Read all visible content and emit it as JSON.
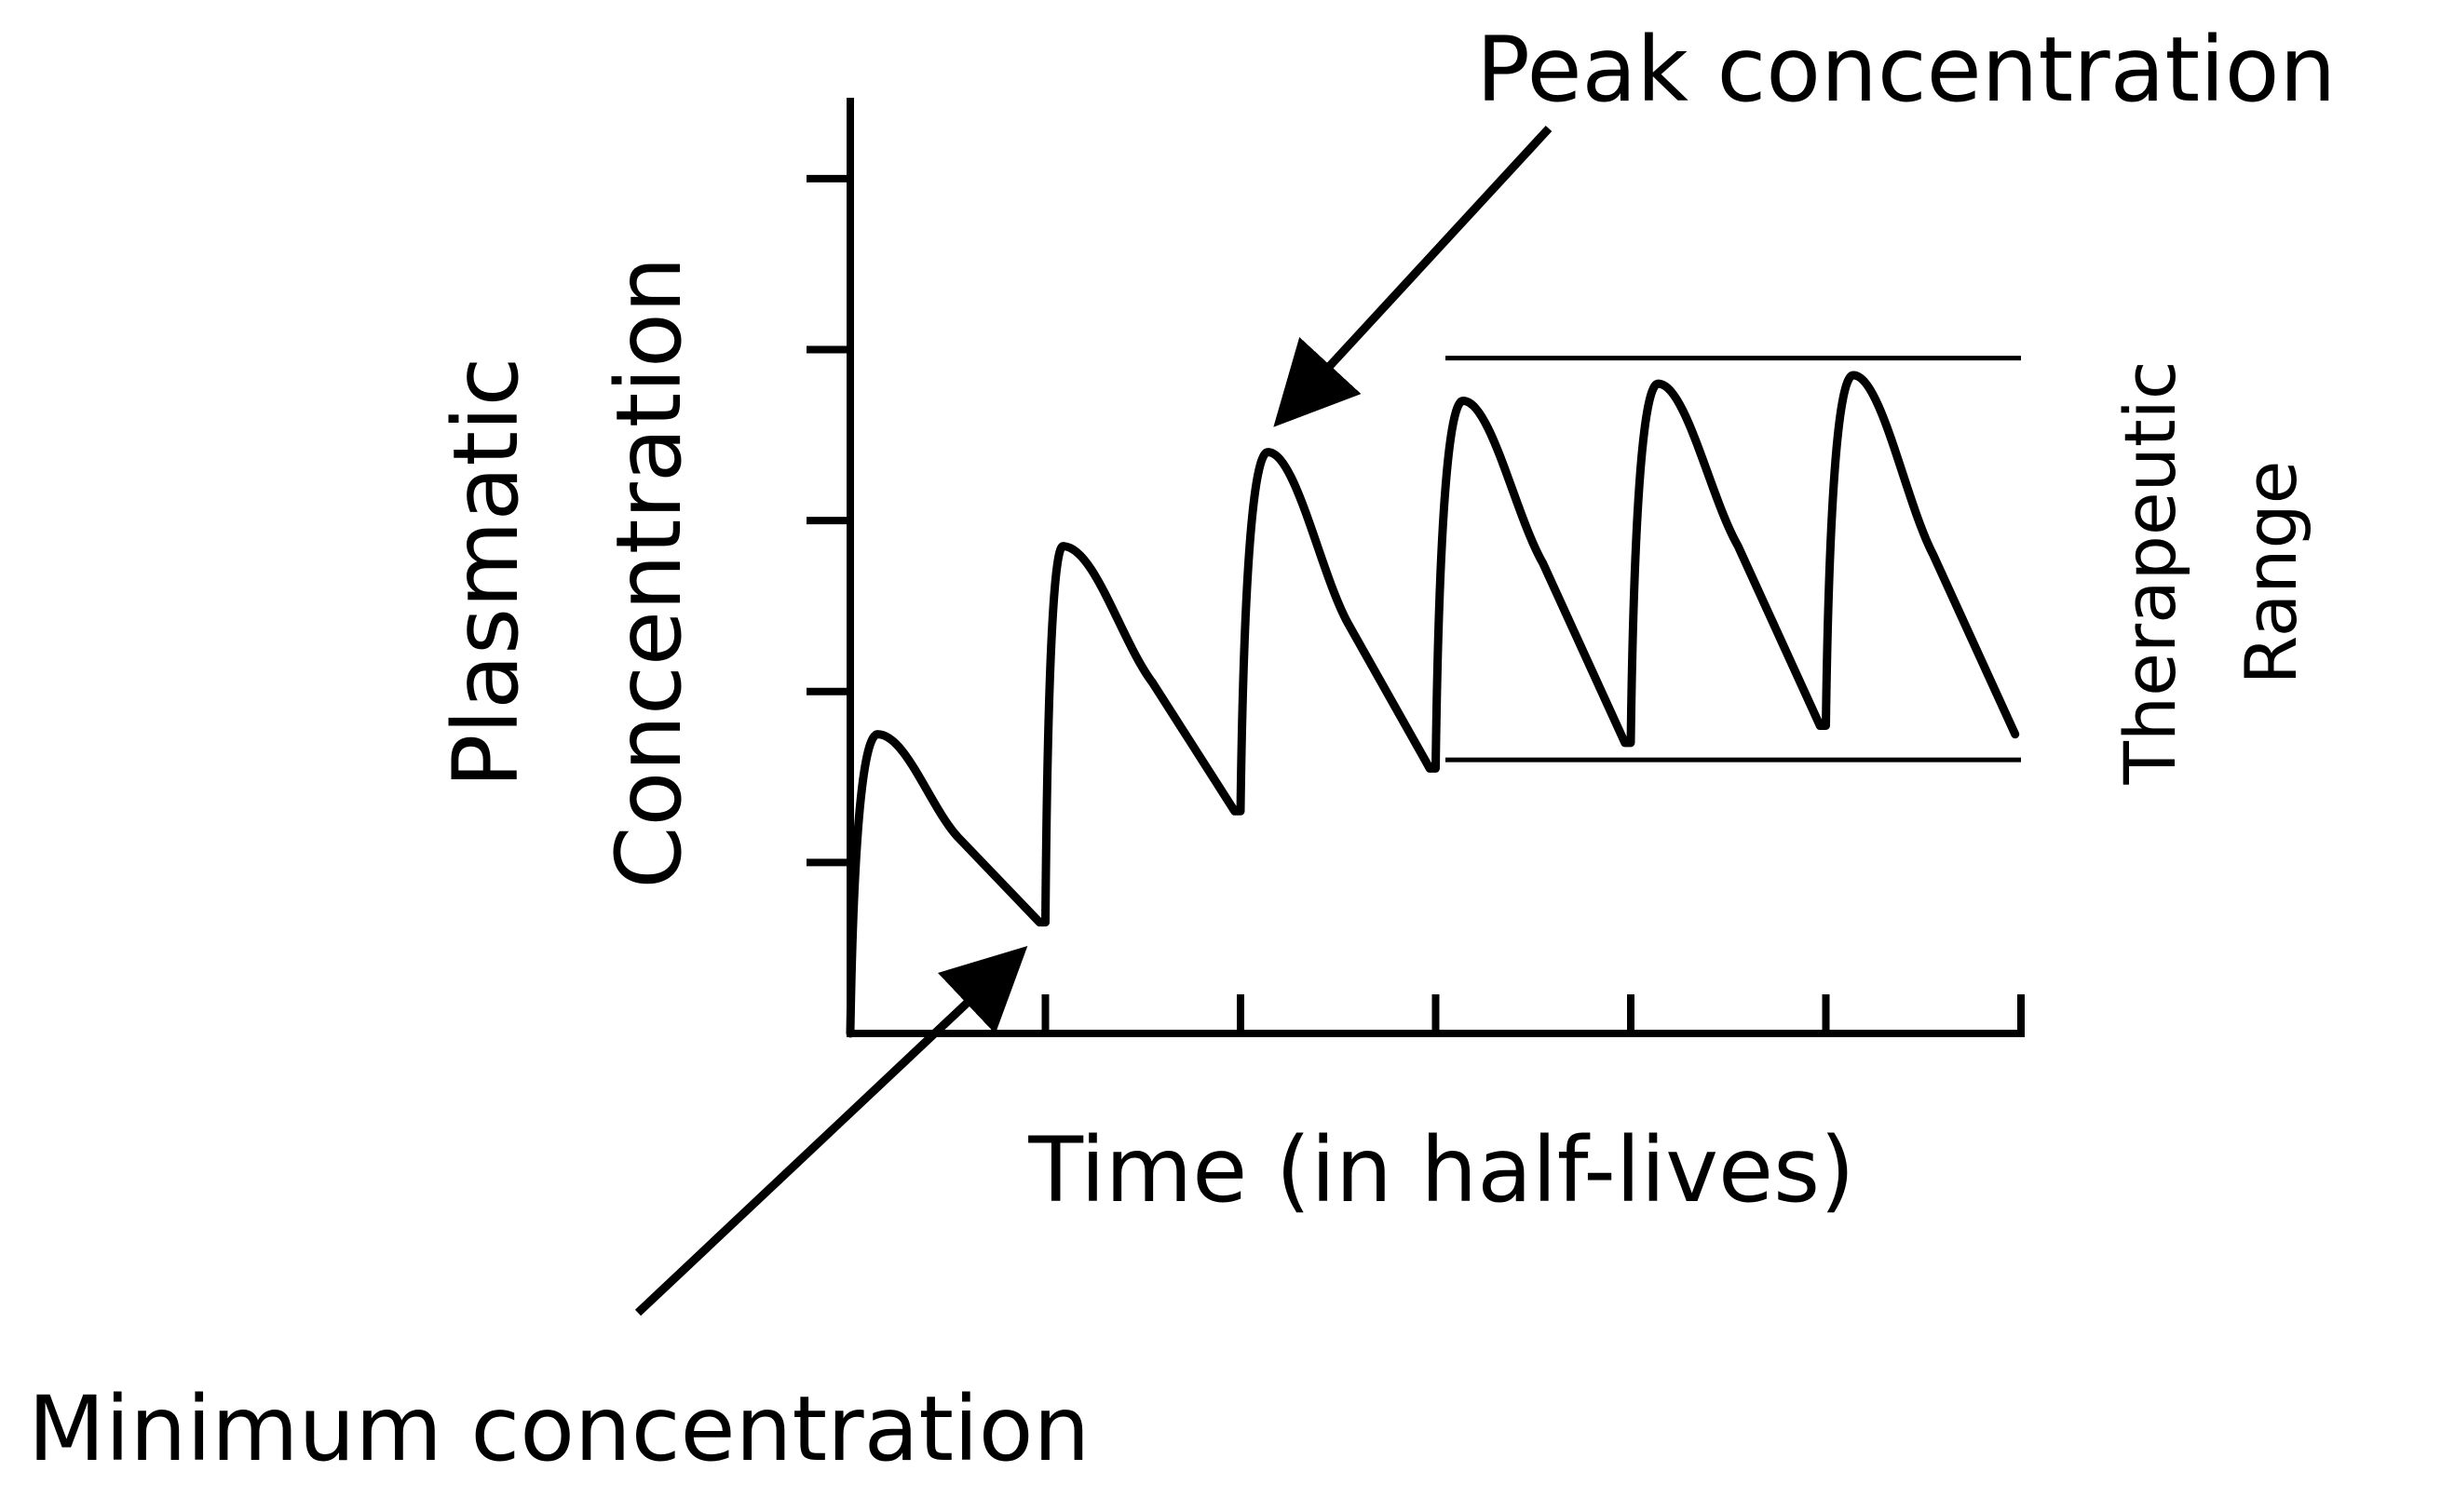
{
  "chart_data": {
    "type": "line",
    "title": "",
    "xlabel": "Time (in half-lives)",
    "ylabel": [
      "Plasmatic",
      "Concentration"
    ],
    "x_ticks": 6,
    "y_ticks": 5,
    "xlim": [
      0,
      6
    ],
    "ylim": [
      0,
      5.5
    ],
    "series": [
      {
        "points": [
          [
            0.0,
            0.0
          ],
          [
            0.14,
            1.75
          ],
          [
            0.55,
            1.15
          ],
          [
            0.97,
            0.65
          ],
          [
            1.0,
            0.65
          ],
          [
            1.09,
            2.85
          ],
          [
            1.55,
            2.05
          ],
          [
            1.97,
            1.3
          ],
          [
            2.0,
            1.3
          ],
          [
            2.14,
            3.4
          ],
          [
            2.55,
            2.4
          ],
          [
            2.97,
            1.55
          ],
          [
            3.0,
            1.55
          ],
          [
            3.14,
            3.7
          ],
          [
            3.55,
            2.75
          ],
          [
            3.97,
            1.7
          ],
          [
            4.0,
            1.7
          ],
          [
            4.14,
            3.8
          ],
          [
            4.55,
            2.85
          ],
          [
            4.97,
            1.8
          ],
          [
            5.0,
            1.8
          ],
          [
            5.14,
            3.85
          ],
          [
            5.55,
            2.8
          ],
          [
            5.97,
            1.75
          ]
        ]
      }
    ],
    "therapeutic_range": {
      "upper": 3.95,
      "lower": 1.6,
      "x_start": 3.05,
      "x_end": 6.0
    },
    "range_label": [
      "Therapeutic",
      "Range"
    ],
    "annotations": [
      {
        "text": "Peak concentration",
        "target": [
          2.15,
          3.55
        ]
      },
      {
        "text": "Minimum concentration",
        "target": [
          0.82,
          0.5
        ]
      }
    ]
  }
}
